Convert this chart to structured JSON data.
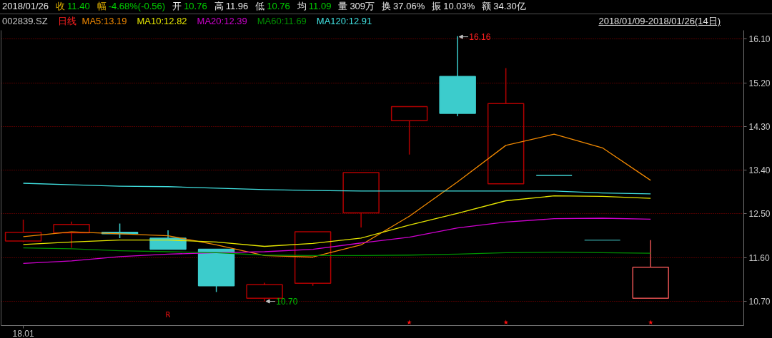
{
  "chart_data": {
    "type": "candlestick",
    "title": "2018/01/26 收 11.40 幅 -4.68%(-0.56) 开 10.76 高 11.96 低 10.76 均 11.09 量 309万 换 37.06% 振 10.03% 额 34.30亿",
    "subtitle": "002839.SZ",
    "legend_title": "日线",
    "legend": "top left",
    "grid": "y",
    "categories": [
      "18.01",
      null,
      null,
      null,
      null,
      null,
      null,
      null,
      null,
      null,
      null,
      null,
      null,
      null
    ],
    "ohlc": [
      [
        11.94,
        12.38,
        11.92,
        12.12
      ],
      [
        12.11,
        12.34,
        11.8,
        12.28
      ],
      [
        12.12,
        12.3,
        12.0,
        12.09
      ],
      [
        12.0,
        12.16,
        11.77,
        11.77
      ],
      [
        11.77,
        11.77,
        10.89,
        11.02
      ],
      [
        10.76,
        11.08,
        10.7,
        11.04
      ],
      [
        11.07,
        12.13,
        11.02,
        12.13
      ],
      [
        12.52,
        13.35,
        12.22,
        13.35
      ],
      [
        14.42,
        14.71,
        13.72,
        14.71
      ],
      [
        15.33,
        16.16,
        14.51,
        14.57
      ],
      [
        13.12,
        15.5,
        13.12,
        14.77
      ],
      [
        13.29,
        13.29,
        13.29,
        13.29
      ],
      [
        11.96,
        11.96,
        11.96,
        11.96
      ],
      [
        10.76,
        11.96,
        10.76,
        11.4
      ]
    ],
    "colors": [
      "#b00000",
      "#b00000",
      "#3ccccc",
      "#3ccccc",
      "#3ccccc",
      "#b00000",
      "#b00000",
      "#b00000",
      "#b00000",
      "#3ccccc",
      "#b00000",
      "#40d0d0",
      "#2e8b8b",
      "#e05050"
    ],
    "series": [
      {
        "name": "MA5:13.19",
        "type": "line",
        "color": "#f08800",
        "values": [
          12.03,
          12.13,
          12.09,
          12.05,
          11.86,
          11.64,
          11.61,
          11.86,
          12.45,
          13.16,
          13.91,
          14.14,
          13.86,
          13.19
        ]
      },
      {
        "name": "MA10:12.82",
        "type": "line",
        "color": "#e6e600",
        "values": [
          11.87,
          11.92,
          11.96,
          11.96,
          11.92,
          11.83,
          11.89,
          12.0,
          12.27,
          12.51,
          12.77,
          12.87,
          12.86,
          12.82
        ]
      },
      {
        "name": "MA20:12.39",
        "type": "line",
        "color": "#d000d0",
        "values": [
          11.48,
          11.53,
          11.62,
          11.67,
          11.7,
          11.72,
          11.77,
          11.9,
          12.02,
          12.21,
          12.33,
          12.4,
          12.41,
          12.39
        ]
      },
      {
        "name": "MA60:11.69",
        "type": "line",
        "color": "#009000",
        "values": [
          11.8,
          11.78,
          11.74,
          11.72,
          11.7,
          11.65,
          11.64,
          11.64,
          11.65,
          11.67,
          11.7,
          11.71,
          11.7,
          11.69
        ]
      },
      {
        "name": "MA120:12.91",
        "type": "line",
        "color": "#40e0e0",
        "values": [
          13.13,
          13.1,
          13.07,
          13.06,
          13.03,
          13.0,
          12.98,
          12.97,
          12.97,
          12.97,
          12.97,
          12.97,
          12.93,
          12.91
        ]
      }
    ],
    "ylim": [
      10.2,
      16.28
    ],
    "yticks": [
      {
        "value": 10.7,
        "label": "10.70"
      },
      {
        "value": 11.6,
        "label": "11.60"
      },
      {
        "value": 12.5,
        "label": "12.50"
      },
      {
        "value": 13.4,
        "label": "13.40"
      },
      {
        "value": 14.3,
        "label": "14.30"
      },
      {
        "value": 15.2,
        "label": "15.20"
      },
      {
        "value": 16.1,
        "label": "16.10"
      }
    ],
    "annotations": [
      "2018/01/09-2018/01/26(14日)",
      "16.16",
      "10.70",
      "R",
      "★",
      "★",
      "★"
    ]
  }
}
